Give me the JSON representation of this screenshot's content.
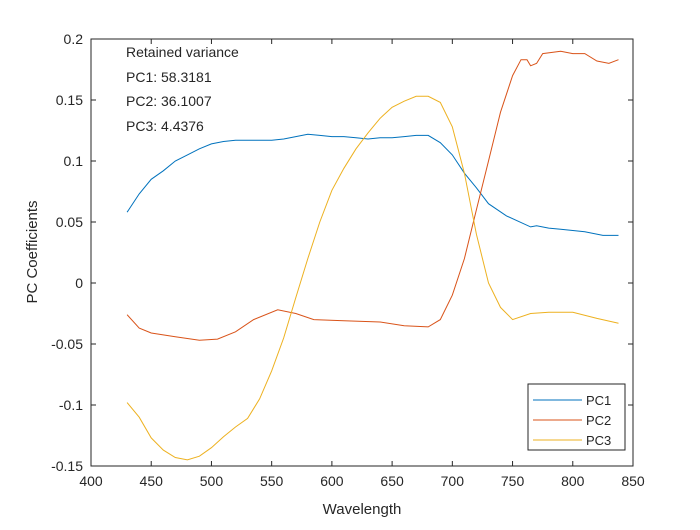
{
  "chart_data": {
    "type": "line",
    "xlabel": "Wavelength",
    "ylabel": "PC Coefficients",
    "xlim": [
      400,
      850
    ],
    "ylim": [
      -0.15,
      0.2
    ],
    "xticks": [
      400,
      450,
      500,
      550,
      600,
      650,
      700,
      750,
      800,
      850
    ],
    "yticks": [
      -0.15,
      -0.1,
      -0.05,
      0,
      0.05,
      0.1,
      0.15,
      0.2
    ],
    "ytick_labels": [
      "-0.15",
      "-0.1",
      "-0.05",
      "0",
      "0.05",
      "0.1",
      "0.15",
      "0.2"
    ],
    "grid": false,
    "legend_position": "bottom-right",
    "annotation": [
      "Retained variance",
      "PC1: 58.3181",
      "PC2: 36.1007",
      "PC3: 4.4376"
    ],
    "series": [
      {
        "name": "PC1",
        "color": "#0072BD",
        "x": [
          430,
          440,
          450,
          460,
          470,
          480,
          490,
          500,
          510,
          520,
          530,
          540,
          550,
          560,
          570,
          580,
          590,
          600,
          610,
          620,
          630,
          640,
          650,
          660,
          670,
          680,
          690,
          700,
          710,
          720,
          730,
          745,
          765,
          770,
          780,
          790,
          800,
          810,
          825,
          838
        ],
        "y": [
          0.058,
          0.073,
          0.085,
          0.092,
          0.1,
          0.105,
          0.11,
          0.114,
          0.116,
          0.117,
          0.117,
          0.117,
          0.117,
          0.118,
          0.12,
          0.122,
          0.121,
          0.12,
          0.12,
          0.119,
          0.118,
          0.119,
          0.119,
          0.12,
          0.121,
          0.121,
          0.115,
          0.105,
          0.09,
          0.078,
          0.065,
          0.055,
          0.046,
          0.047,
          0.045,
          0.044,
          0.043,
          0.042,
          0.039,
          0.039
        ]
      },
      {
        "name": "PC2",
        "color": "#D95319",
        "x": [
          430,
          440,
          450,
          470,
          490,
          505,
          520,
          535,
          555,
          570,
          585,
          610,
          640,
          660,
          680,
          690,
          700,
          710,
          720,
          730,
          740,
          750,
          757,
          762,
          765,
          770,
          775,
          790,
          800,
          810,
          820,
          830,
          838
        ],
        "y": [
          -0.026,
          -0.037,
          -0.041,
          -0.044,
          -0.047,
          -0.046,
          -0.04,
          -0.03,
          -0.022,
          -0.025,
          -0.03,
          -0.031,
          -0.032,
          -0.035,
          -0.036,
          -0.03,
          -0.01,
          0.02,
          0.06,
          0.1,
          0.14,
          0.17,
          0.183,
          0.183,
          0.178,
          0.18,
          0.188,
          0.19,
          0.188,
          0.188,
          0.182,
          0.18,
          0.183
        ]
      },
      {
        "name": "PC3",
        "color": "#EDB120",
        "x": [
          430,
          440,
          450,
          460,
          470,
          480,
          490,
          500,
          510,
          520,
          530,
          540,
          550,
          560,
          570,
          580,
          590,
          600,
          610,
          620,
          630,
          640,
          650,
          660,
          670,
          680,
          690,
          700,
          710,
          720,
          730,
          740,
          750,
          765,
          780,
          800,
          820,
          838
        ],
        "y": [
          -0.098,
          -0.11,
          -0.127,
          -0.137,
          -0.143,
          -0.145,
          -0.142,
          -0.135,
          -0.126,
          -0.118,
          -0.111,
          -0.095,
          -0.072,
          -0.045,
          -0.012,
          0.02,
          0.05,
          0.076,
          0.094,
          0.11,
          0.123,
          0.135,
          0.144,
          0.149,
          0.153,
          0.153,
          0.148,
          0.128,
          0.09,
          0.04,
          0.0,
          -0.02,
          -0.03,
          -0.025,
          -0.024,
          -0.024,
          -0.029,
          -0.033
        ]
      }
    ]
  }
}
